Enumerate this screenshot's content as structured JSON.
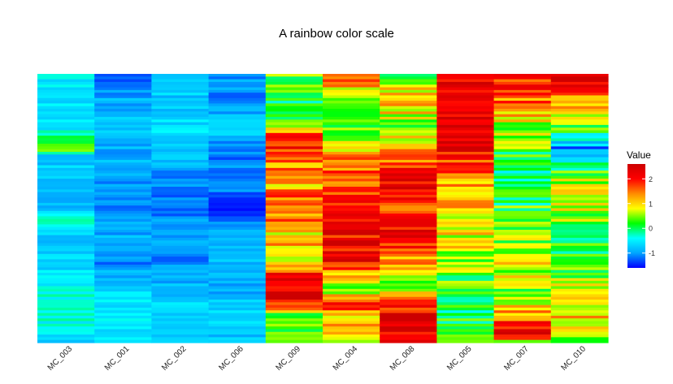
{
  "chart_data": {
    "type": "heatmap",
    "title": "A rainbow color scale",
    "columns": [
      "MC_003",
      "MC_001",
      "MC_002",
      "MC_006",
      "MC_009",
      "MC_004",
      "MC_008",
      "MC_005",
      "MC_007",
      "MC_010"
    ],
    "row_count": 100,
    "colorbar": {
      "title": "Value",
      "ticks": [
        -1,
        0,
        1,
        2
      ],
      "range": [
        -1.6,
        2.6
      ],
      "colors": [
        "#0000ff",
        "#00a5ff",
        "#00ffff",
        "#00ff00",
        "#ffff00",
        "#ff8c00",
        "#ff0000",
        "#cc0000"
      ]
    },
    "column_profiles": {
      "MC_003": [
        [
          0,
          -0.5
        ],
        [
          0.1,
          -0.6
        ],
        [
          0.2,
          -0.5
        ],
        [
          0.28,
          0.6
        ],
        [
          0.3,
          -0.7
        ],
        [
          0.45,
          -0.9
        ],
        [
          0.5,
          -0.8
        ],
        [
          0.55,
          -0.3
        ],
        [
          0.6,
          -0.8
        ],
        [
          0.7,
          -0.7
        ],
        [
          0.8,
          -0.4
        ],
        [
          0.9,
          -0.3
        ],
        [
          1,
          -0.6
        ]
      ],
      "MC_001": [
        [
          0,
          -1.2
        ],
        [
          0.1,
          -0.9
        ],
        [
          0.2,
          -0.8
        ],
        [
          0.3,
          -0.9
        ],
        [
          0.4,
          -1.0
        ],
        [
          0.5,
          -1.2
        ],
        [
          0.6,
          -0.9
        ],
        [
          0.7,
          -1.1
        ],
        [
          0.8,
          -0.7
        ],
        [
          0.9,
          -0.5
        ],
        [
          1,
          -0.6
        ]
      ],
      "MC_002": [
        [
          0,
          -0.6
        ],
        [
          0.1,
          -0.8
        ],
        [
          0.2,
          -0.6
        ],
        [
          0.3,
          -0.8
        ],
        [
          0.4,
          -1.1
        ],
        [
          0.5,
          -1.2
        ],
        [
          0.6,
          -0.9
        ],
        [
          0.7,
          -1.1
        ],
        [
          0.8,
          -0.8
        ],
        [
          0.9,
          -0.6
        ],
        [
          1,
          -0.7
        ]
      ],
      "MC_006": [
        [
          0,
          -1.0
        ],
        [
          0.1,
          -1.1
        ],
        [
          0.2,
          -0.7
        ],
        [
          0.3,
          -1.2
        ],
        [
          0.4,
          -1.0
        ],
        [
          0.5,
          -1.4
        ],
        [
          0.6,
          -0.9
        ],
        [
          0.7,
          -0.8
        ],
        [
          0.8,
          -0.9
        ],
        [
          0.9,
          -0.7
        ],
        [
          1,
          -0.8
        ]
      ],
      "MC_009": [
        [
          0,
          0.3
        ],
        [
          0.1,
          0.1
        ],
        [
          0.15,
          0.2
        ],
        [
          0.25,
          2.0
        ],
        [
          0.3,
          1.7
        ],
        [
          0.4,
          1.0
        ],
        [
          0.5,
          1.8
        ],
        [
          0.6,
          0.8
        ],
        [
          0.65,
          1.2
        ],
        [
          0.7,
          0.3
        ],
        [
          0.75,
          2.3
        ],
        [
          0.85,
          2.1
        ],
        [
          0.9,
          0.4
        ],
        [
          1,
          0.2
        ]
      ],
      "MC_004": [
        [
          0,
          1.4
        ],
        [
          0.1,
          0.7
        ],
        [
          0.2,
          0.5
        ],
        [
          0.3,
          1.3
        ],
        [
          0.4,
          1.8
        ],
        [
          0.5,
          1.9
        ],
        [
          0.6,
          2.1
        ],
        [
          0.7,
          2.3
        ],
        [
          0.8,
          0.2
        ],
        [
          0.85,
          2.0
        ],
        [
          0.9,
          1.2
        ],
        [
          1,
          1.0
        ]
      ],
      "MC_008": [
        [
          0,
          0.4
        ],
        [
          0.1,
          1.2
        ],
        [
          0.2,
          0.5
        ],
        [
          0.3,
          1.5
        ],
        [
          0.4,
          2.2
        ],
        [
          0.5,
          1.8
        ],
        [
          0.6,
          2.3
        ],
        [
          0.7,
          1.3
        ],
        [
          0.8,
          0.4
        ],
        [
          0.9,
          2.4
        ],
        [
          1,
          2.3
        ]
      ],
      "MC_005": [
        [
          0,
          2.1
        ],
        [
          0.1,
          2.3
        ],
        [
          0.2,
          2.4
        ],
        [
          0.3,
          2.1
        ],
        [
          0.4,
          1.3
        ],
        [
          0.5,
          1.0
        ],
        [
          0.6,
          0.9
        ],
        [
          0.7,
          0.6
        ],
        [
          0.8,
          0.2
        ],
        [
          0.9,
          0.0
        ],
        [
          1,
          0.1
        ]
      ],
      "MC_007": [
        [
          0,
          1.9
        ],
        [
          0.1,
          1.5
        ],
        [
          0.2,
          0.6
        ],
        [
          0.3,
          0.1
        ],
        [
          0.4,
          -0.3
        ],
        [
          0.5,
          0.2
        ],
        [
          0.6,
          0.4
        ],
        [
          0.7,
          0.9
        ],
        [
          0.8,
          0.5
        ],
        [
          0.9,
          1.3
        ],
        [
          0.97,
          2.3
        ],
        [
          1,
          0.9
        ]
      ],
      "MC_010": [
        [
          0,
          2.3
        ],
        [
          0.1,
          1.3
        ],
        [
          0.2,
          0.4
        ],
        [
          0.28,
          -1.2
        ],
        [
          0.35,
          0.1
        ],
        [
          0.45,
          1.1
        ],
        [
          0.5,
          0.6
        ],
        [
          0.6,
          0.3
        ],
        [
          0.7,
          0.0
        ],
        [
          0.8,
          0.7
        ],
        [
          0.9,
          1.2
        ],
        [
          1,
          0.6
        ]
      ]
    }
  }
}
